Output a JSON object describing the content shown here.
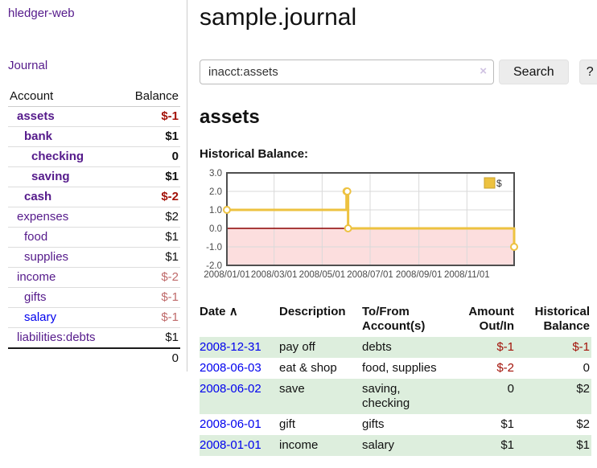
{
  "sidebar": {
    "brand": "hledger-web",
    "nav_journal": "Journal",
    "accounts": {
      "col_account": "Account",
      "col_balance": "Balance",
      "rows": [
        {
          "name": "assets",
          "balance": "$-1"
        },
        {
          "name": "bank",
          "balance": "$1"
        },
        {
          "name": "checking",
          "balance": "0"
        },
        {
          "name": "saving",
          "balance": "$1"
        },
        {
          "name": "cash",
          "balance": "$-2"
        },
        {
          "name": "expenses",
          "balance": "$2"
        },
        {
          "name": "food",
          "balance": "$1"
        },
        {
          "name": "supplies",
          "balance": "$1"
        },
        {
          "name": "income",
          "balance": "$-2"
        },
        {
          "name": "gifts",
          "balance": "$-1"
        },
        {
          "name": "salary",
          "balance": "$-1"
        },
        {
          "name": "liabilities:debts",
          "balance": "$1"
        }
      ],
      "total": "0"
    }
  },
  "header": {
    "title": "sample.journal"
  },
  "search": {
    "value": "inacct:assets",
    "clear_icon": "×",
    "search_label": "Search",
    "help_label": "?"
  },
  "main": {
    "account_heading": "assets",
    "chart_label": "Historical Balance:"
  },
  "chart_data": {
    "type": "line",
    "title": "Historical Balance",
    "step": true,
    "series": [
      {
        "name": "$",
        "color": "#edc240",
        "points": [
          [
            "2008-01-01",
            1
          ],
          [
            "2008-06-01",
            2
          ],
          [
            "2008-06-02",
            2
          ],
          [
            "2008-06-03",
            0
          ],
          [
            "2008-12-31",
            -1
          ]
        ]
      }
    ],
    "xlim": [
      "2008-01-01",
      "2008-12-31"
    ],
    "ylim": [
      -2,
      3
    ],
    "y_ticks": [
      3.0,
      2.0,
      1.0,
      0.0,
      -1.0,
      -2.0
    ],
    "x_ticks": [
      {
        "date": "2008-01-01",
        "label": "2008/01/01"
      },
      {
        "date": "2008-03-01",
        "label": "2008/03/01"
      },
      {
        "date": "2008-05-01",
        "label": "2008/05/01"
      },
      {
        "date": "2008-07-01",
        "label": "2008/07/01"
      },
      {
        "date": "2008-09-01",
        "label": "2008/09/01"
      },
      {
        "date": "2008-11-01",
        "label": "2008/11/01"
      }
    ],
    "legend": {
      "position": "top-right",
      "label": "$"
    },
    "grid": true,
    "grid_color": "#d9d9d9",
    "border_color": "#4f4f4f",
    "axis_label_color": "#4a4a4a",
    "zero_line_color": "#8b0000",
    "negative_region_color": "#fcdede",
    "legend_border_color": "#c9a22b"
  },
  "register": {
    "sort_indicator": "∧",
    "columns": {
      "date": "Date",
      "description": "Description",
      "accounts": "To/From Account(s)",
      "amount": "Amount Out/In",
      "balance": "Historical Balance"
    },
    "rows": [
      {
        "date": "2008-12-31",
        "description": "pay off",
        "accounts": "debts",
        "amount": "$-1",
        "balance": "$-1"
      },
      {
        "date": "2008-06-03",
        "description": "eat & shop",
        "accounts": "food, supplies",
        "amount": "$-2",
        "balance": "0"
      },
      {
        "date": "2008-06-02",
        "description": "save",
        "accounts": "saving, checking",
        "amount": "0",
        "balance": "$2"
      },
      {
        "date": "2008-06-01",
        "description": "gift",
        "accounts": "gifts",
        "amount": "$1",
        "balance": "$2"
      },
      {
        "date": "2008-01-01",
        "description": "income",
        "accounts": "salary",
        "amount": "$1",
        "balance": "$1"
      }
    ]
  }
}
